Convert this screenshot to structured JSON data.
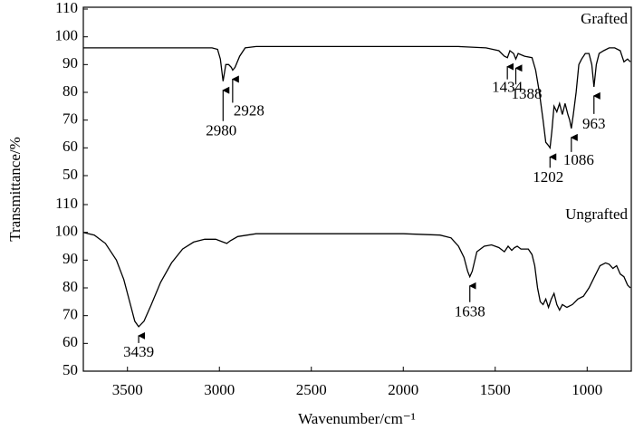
{
  "chart_data": [
    {
      "type": "line",
      "y_label": "Transmittance/%",
      "xlim": [
        3740,
        760
      ],
      "ylim": [
        50,
        110
      ],
      "yticks": [
        50,
        60,
        70,
        80,
        90,
        100,
        110
      ],
      "x": [
        3740,
        3500,
        3200,
        3040,
        3010,
        2995,
        2980,
        2965,
        2950,
        2935,
        2928,
        2915,
        2890,
        2860,
        2800,
        2500,
        2000,
        1700,
        1550,
        1480,
        1450,
        1434,
        1420,
        1400,
        1388,
        1375,
        1340,
        1300,
        1280,
        1260,
        1240,
        1225,
        1212,
        1202,
        1192,
        1180,
        1165,
        1150,
        1135,
        1120,
        1105,
        1095,
        1086,
        1075,
        1060,
        1045,
        1030,
        1010,
        990,
        975,
        963,
        950,
        935,
        910,
        880,
        850,
        820,
        800,
        780,
        765
      ],
      "series": [
        {
          "name": "Grafted",
          "color": "#000000",
          "values": [
            96,
            96,
            96,
            96,
            95.5,
            92,
            84,
            90,
            90,
            89,
            88,
            89,
            93,
            96,
            96.5,
            96.5,
            96.5,
            96.5,
            96,
            95,
            93,
            92.5,
            95,
            94,
            92,
            94,
            93,
            92.5,
            88,
            80,
            70,
            62,
            61,
            60,
            66,
            75,
            73,
            76,
            72,
            76,
            72,
            70,
            67,
            72,
            80,
            90,
            92,
            94,
            94,
            90,
            82,
            90,
            94,
            95,
            96,
            96,
            95,
            91,
            92,
            91
          ]
        }
      ],
      "peaks": [
        2980,
        2928,
        1434,
        1388,
        1202,
        1086,
        963
      ]
    },
    {
      "type": "line",
      "x_label": "Wavenumber/cm⁻¹",
      "xlim": [
        3740,
        760
      ],
      "ylim": [
        50,
        110
      ],
      "yticks": [
        50,
        60,
        70,
        80,
        90,
        100,
        110
      ],
      "xticks": [
        {
          "value": 3500,
          "label": "3500"
        },
        {
          "value": 3000,
          "label": "3000"
        },
        {
          "value": 2500,
          "label": "2500"
        },
        {
          "value": 2000,
          "label": "2000"
        },
        {
          "value": 1500,
          "label": "1500"
        },
        {
          "value": 1000,
          "label": "1000"
        }
      ],
      "x": [
        3740,
        3680,
        3620,
        3560,
        3520,
        3480,
        3460,
        3439,
        3410,
        3370,
        3320,
        3260,
        3200,
        3140,
        3080,
        3020,
        2980,
        2960,
        2940,
        2900,
        2800,
        2700,
        2400,
        2000,
        1800,
        1740,
        1700,
        1670,
        1650,
        1638,
        1625,
        1600,
        1560,
        1520,
        1480,
        1450,
        1430,
        1410,
        1395,
        1380,
        1360,
        1320,
        1300,
        1285,
        1270,
        1255,
        1240,
        1225,
        1210,
        1195,
        1180,
        1165,
        1150,
        1135,
        1110,
        1080,
        1050,
        1020,
        990,
        960,
        930,
        900,
        880,
        860,
        840,
        820,
        800,
        780,
        765
      ],
      "series": [
        {
          "name": "Ungrafted",
          "color": "#000000",
          "values": [
            100,
            99,
            96,
            90,
            83,
            73,
            68,
            66,
            68,
            74,
            82,
            89,
            94,
            96.5,
            97.5,
            97.5,
            96.5,
            96,
            97,
            98.5,
            99.5,
            99.5,
            99.5,
            99.5,
            99,
            98,
            95,
            91,
            86,
            84,
            86,
            93,
            95,
            95.5,
            94.5,
            93,
            95,
            93.5,
            94.5,
            95,
            94,
            94,
            92,
            88,
            80,
            75,
            74,
            76,
            73,
            76,
            78,
            74,
            72,
            74,
            73,
            74,
            76,
            77,
            80,
            84,
            88,
            89,
            88.5,
            87,
            88,
            85,
            84,
            81,
            80
          ]
        }
      ],
      "peaks": [
        3439,
        1638
      ]
    }
  ]
}
